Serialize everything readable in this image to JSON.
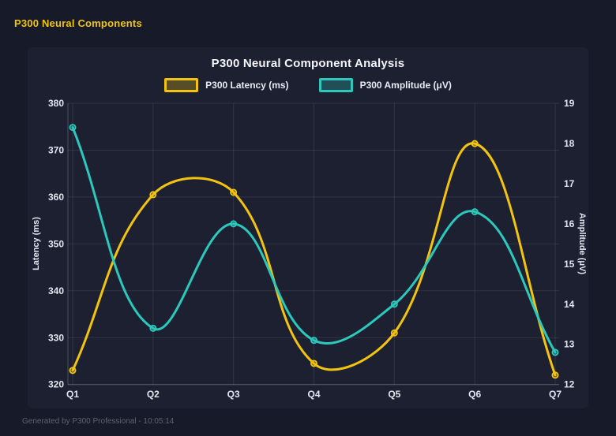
{
  "header": {
    "title": "P300 Neural Components"
  },
  "footer": {
    "text": "Generated by P300 Professional - 10:05:14"
  },
  "colors": {
    "page_bg": "#171a28",
    "card_bg": "#1d2031",
    "accent_yellow": "#f2c40f",
    "accent_teal": "#2bc8bb",
    "tick_text": "#e3e6ef",
    "grid": "rgba(255,255,255,0.09)",
    "axis_border": "rgba(255,255,255,0.22)"
  },
  "chart_data": {
    "type": "line",
    "title": "P300 Neural Component Analysis",
    "categories": [
      "Q1",
      "Q2",
      "Q3",
      "Q4",
      "Q5",
      "Q6",
      "Q7"
    ],
    "series": [
      {
        "name": "P300 Latency (ms)",
        "axis": "left",
        "color": "#f2c40f",
        "values": [
          323,
          360.5,
          361,
          324.5,
          331,
          371.4,
          322
        ]
      },
      {
        "name": "P300 Amplitude (μV)",
        "axis": "right",
        "color": "#2bc8bb",
        "values": [
          18.4,
          13.4,
          16.0,
          13.1,
          14.0,
          16.3,
          12.8
        ]
      }
    ],
    "y_left": {
      "label": "Latency (ms)",
      "min": 320,
      "max": 380,
      "step": 10
    },
    "y_right": {
      "label": "Amplitude (μV)",
      "min": 12,
      "max": 19,
      "step": 1
    },
    "legend_position": "top",
    "grid": true,
    "line_tension": 0.4
  }
}
